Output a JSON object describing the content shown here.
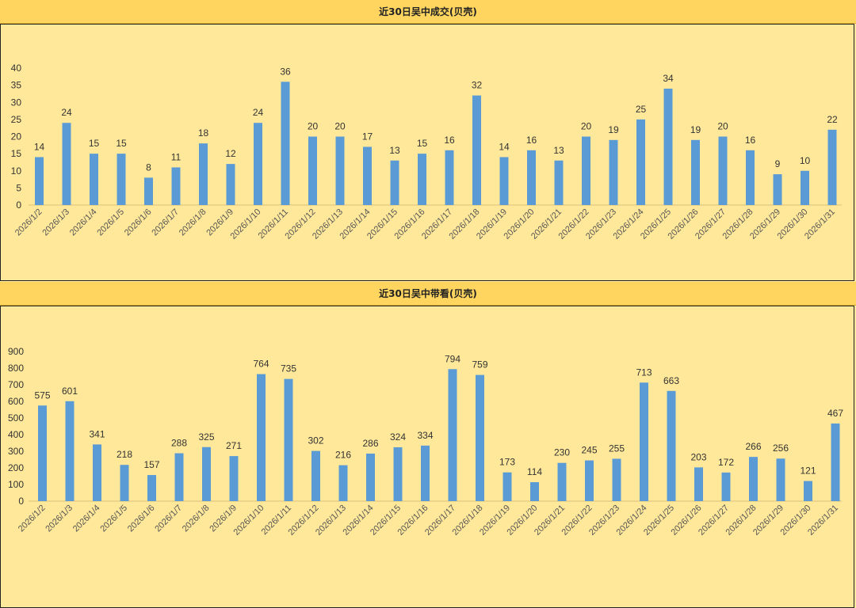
{
  "chart_data": [
    {
      "type": "bar",
      "title": "近30日吴中成交(贝壳)",
      "categories": [
        "2026/1/2",
        "2026/1/3",
        "2026/1/4",
        "2026/1/5",
        "2026/1/6",
        "2026/1/7",
        "2026/1/8",
        "2026/1/9",
        "2026/1/10",
        "2026/1/11",
        "2026/1/12",
        "2026/1/13",
        "2026/1/14",
        "2026/1/15",
        "2026/1/16",
        "2026/1/17",
        "2026/1/18",
        "2026/1/19",
        "2026/1/20",
        "2026/1/21",
        "2026/1/22",
        "2026/1/23",
        "2026/1/24",
        "2026/1/25",
        "2026/1/26",
        "2026/1/27",
        "2026/1/28",
        "2026/1/29",
        "2026/1/30",
        "2026/1/31"
      ],
      "values": [
        14,
        24,
        15,
        15,
        8,
        11,
        18,
        12,
        24,
        36,
        20,
        20,
        17,
        13,
        15,
        16,
        32,
        14,
        16,
        13,
        20,
        19,
        25,
        34,
        19,
        20,
        16,
        9,
        10,
        22
      ],
      "ylim": [
        0,
        40
      ],
      "yticks": [
        0,
        5,
        10,
        15,
        20,
        25,
        30,
        35,
        40
      ],
      "xlabel": "",
      "ylabel": "",
      "bar_color": "#5b9bd5"
    },
    {
      "type": "bar",
      "title": "近30日吴中带看(贝壳)",
      "categories": [
        "2026/1/2",
        "2026/1/3",
        "2026/1/4",
        "2026/1/5",
        "2026/1/6",
        "2026/1/7",
        "2026/1/8",
        "2026/1/9",
        "2026/1/10",
        "2026/1/11",
        "2026/1/12",
        "2026/1/13",
        "2026/1/14",
        "2026/1/15",
        "2026/1/16",
        "2026/1/17",
        "2026/1/18",
        "2026/1/19",
        "2026/1/20",
        "2026/1/21",
        "2026/1/22",
        "2026/1/23",
        "2026/1/24",
        "2026/1/25",
        "2026/1/26",
        "2026/1/27",
        "2026/1/28",
        "2026/1/29",
        "2026/1/30",
        "2026/1/31"
      ],
      "values": [
        575,
        601,
        341,
        218,
        157,
        288,
        325,
        271,
        764,
        735,
        302,
        216,
        286,
        324,
        334,
        794,
        759,
        173,
        114,
        230,
        245,
        255,
        713,
        663,
        203,
        172,
        266,
        256,
        121,
        467
      ],
      "ylim": [
        0,
        900
      ],
      "yticks": [
        0,
        100,
        200,
        300,
        400,
        500,
        600,
        700,
        800,
        900
      ],
      "xlabel": "",
      "ylabel": "",
      "bar_color": "#5b9bd5"
    }
  ]
}
